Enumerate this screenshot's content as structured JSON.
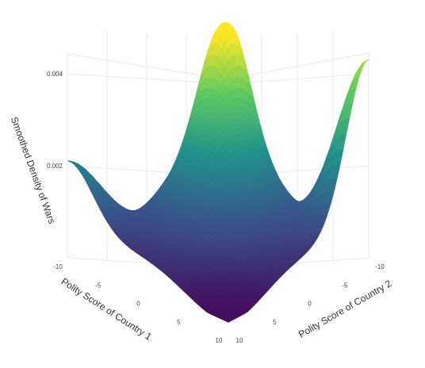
{
  "chart_data": {
    "type": "surface",
    "x_axis": {
      "label": "Polity Score of Country 1",
      "range": [
        -10,
        10
      ],
      "ticks": [
        "-10",
        "-5",
        "0",
        "5",
        "10"
      ]
    },
    "y_axis": {
      "label": "Polity Score of Country 2",
      "range": [
        -10,
        10
      ],
      "ticks": [
        "-10",
        "-5",
        "0",
        "5",
        "10"
      ]
    },
    "z_axis": {
      "label": "Smoothed Density of Wars",
      "range": [
        0,
        0.005
      ],
      "ticks": [
        "0.002",
        "0.004"
      ]
    },
    "colorscale": [
      "#440154",
      "#3b528b",
      "#21918c",
      "#5ec962",
      "#fde725"
    ],
    "grid": true,
    "peaks": [
      {
        "x": -10,
        "y": -10,
        "density": 0.005
      },
      {
        "x": 10,
        "y": -10,
        "density": 0.0046
      },
      {
        "x": -10,
        "y": 10,
        "density": 0.0024
      },
      {
        "x": -5,
        "y": -5,
        "density": 0.003
      }
    ],
    "baseline_density": 0.0012,
    "minimum": {
      "x": 10,
      "y": 10,
      "density": 0.0002
    }
  }
}
